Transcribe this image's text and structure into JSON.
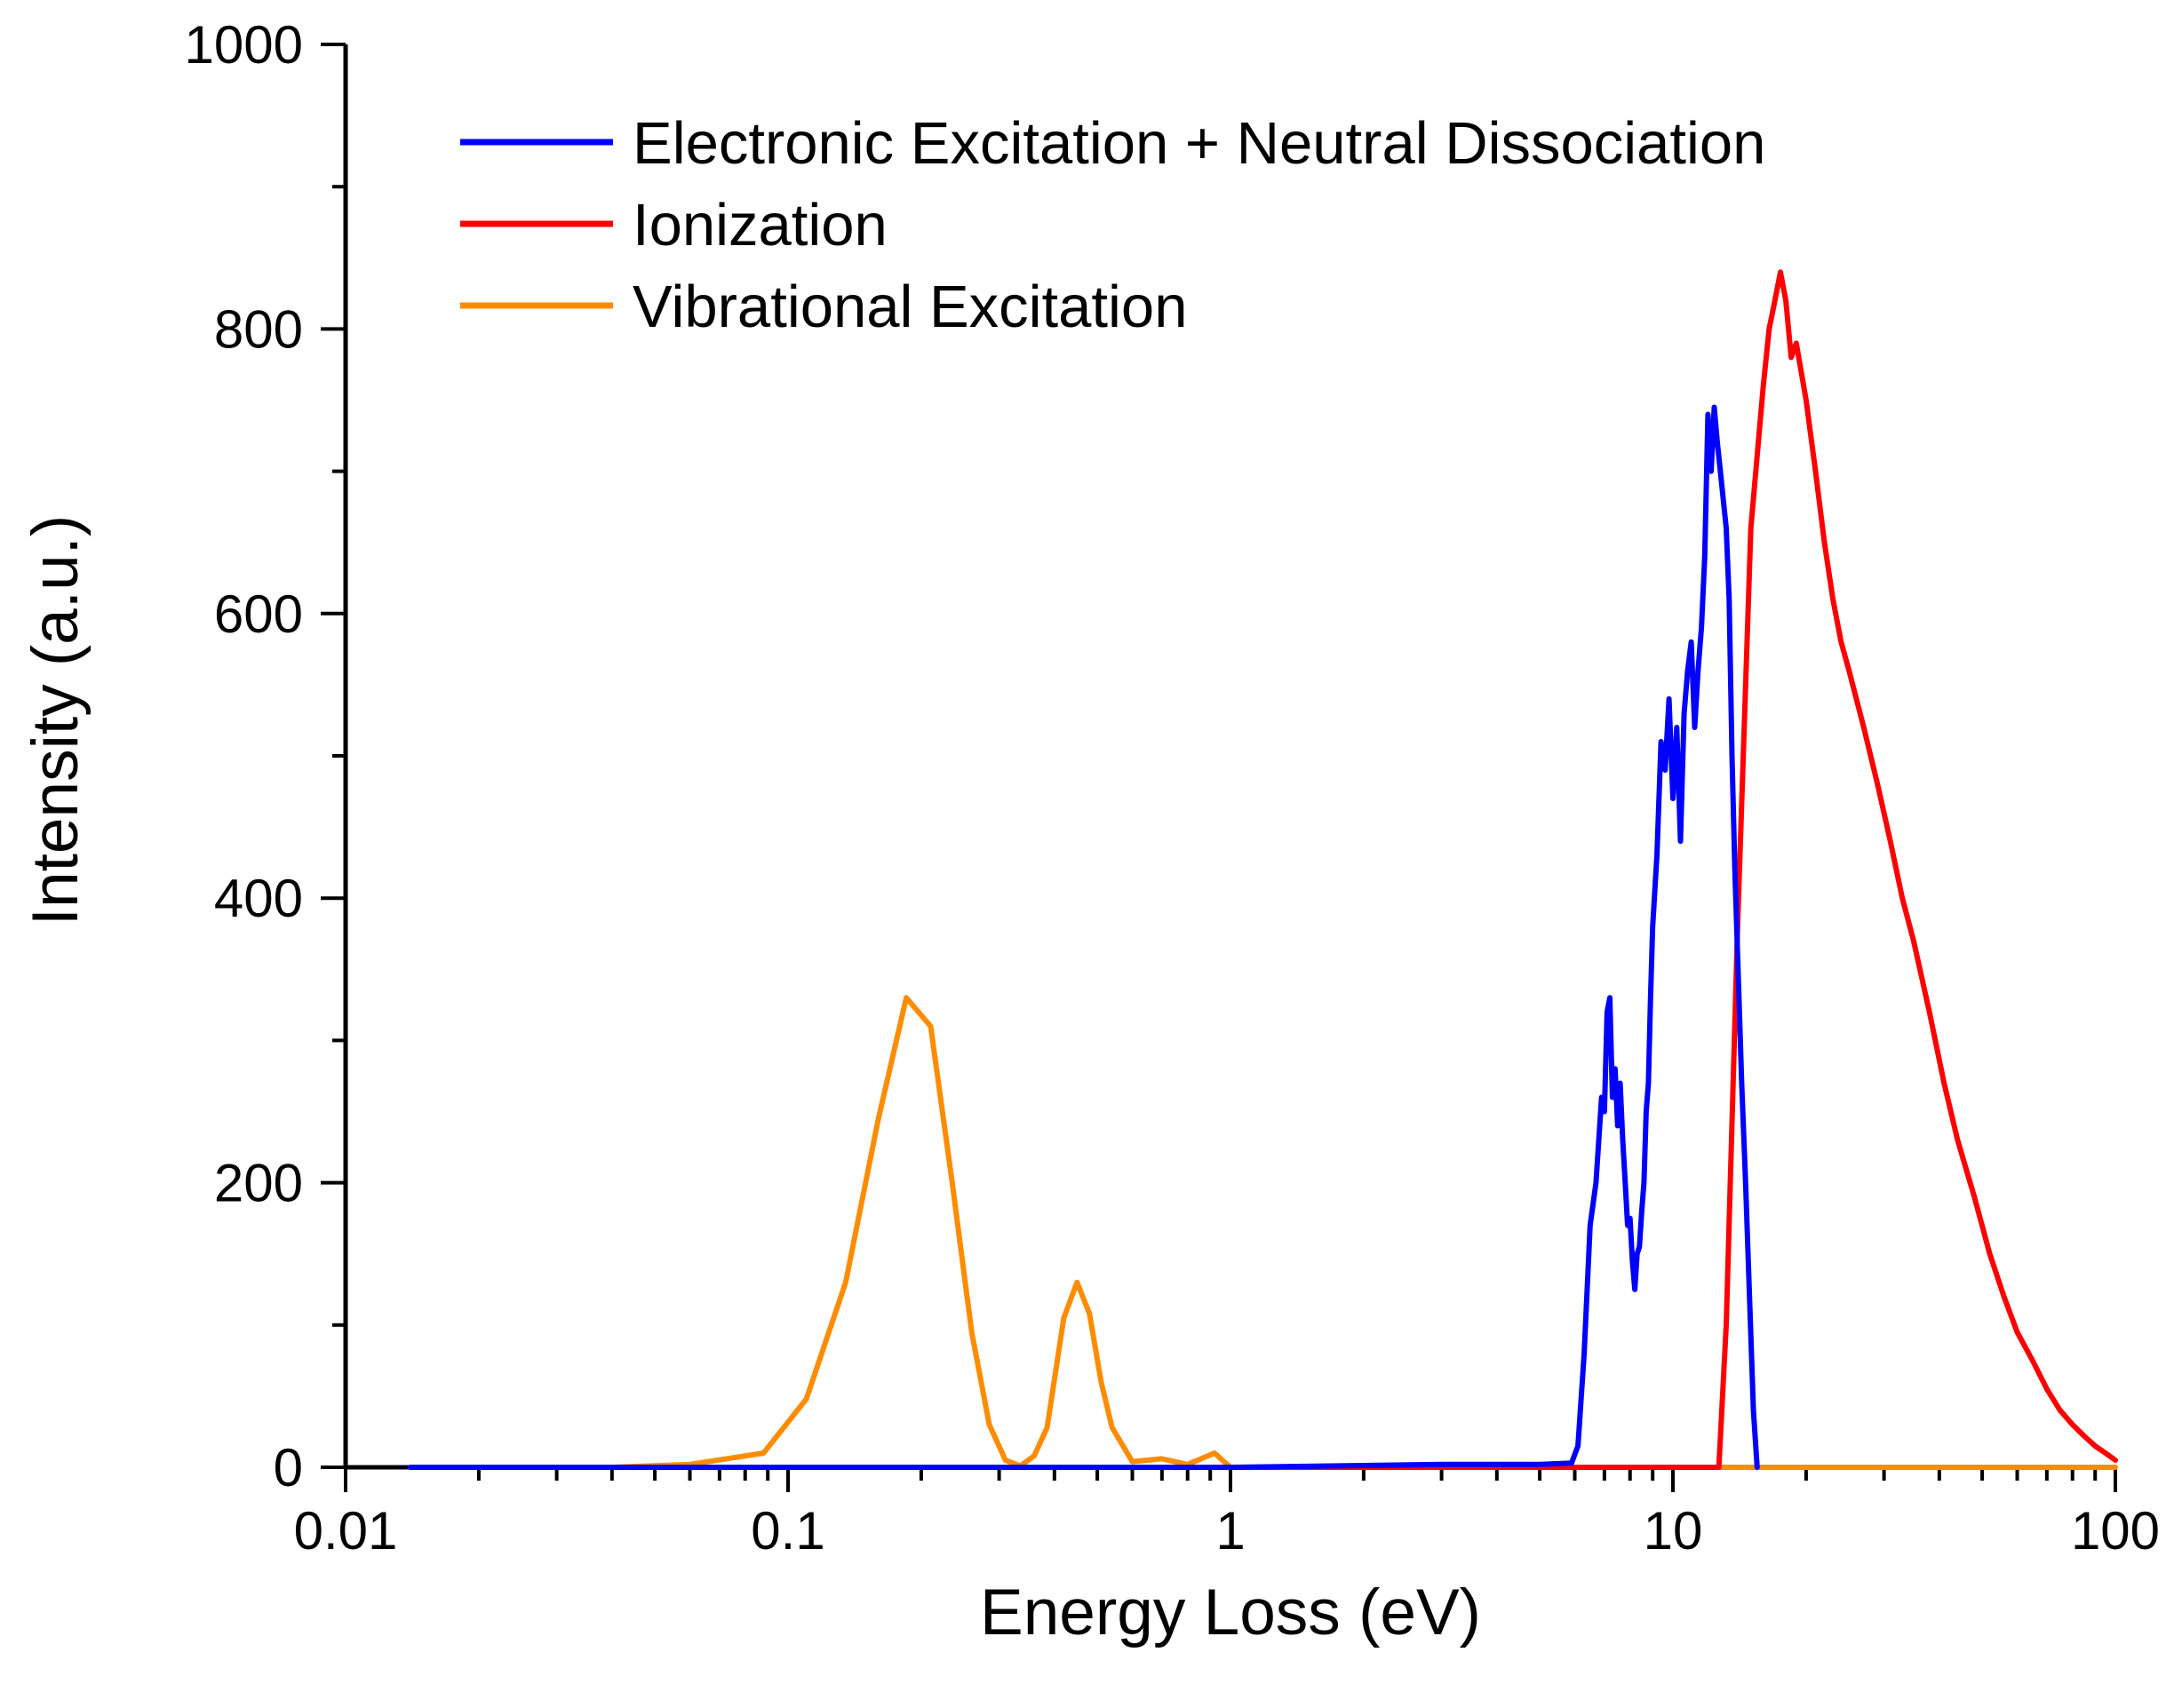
{
  "chart_data": {
    "type": "line",
    "title": "",
    "xlabel": "Energy Loss (eV)",
    "ylabel": "Intensity (a.u.)",
    "xscale": "log",
    "xlim": [
      0.01,
      100
    ],
    "ylim": [
      0,
      1000
    ],
    "xticks": [
      {
        "value": 0.01,
        "label": "0.01"
      },
      {
        "value": 0.1,
        "label": "0.1"
      },
      {
        "value": 1,
        "label": "1"
      },
      {
        "value": 10,
        "label": "10"
      },
      {
        "value": 100,
        "label": "100"
      }
    ],
    "yticks": [
      {
        "value": 0,
        "label": "0"
      },
      {
        "value": 200,
        "label": "200"
      },
      {
        "value": 400,
        "label": "400"
      },
      {
        "value": 600,
        "label": "600"
      },
      {
        "value": 800,
        "label": "800"
      },
      {
        "value": 1000,
        "label": "1000"
      }
    ],
    "grid": false,
    "legend_position": "top-left",
    "series": [
      {
        "name": "Electronic Excitation + Neutral Dissociation",
        "color": "#0000ff",
        "x": [
          0.014,
          1.0,
          3.0,
          5.0,
          5.9,
          6.1,
          6.3,
          6.5,
          6.7,
          6.9,
          7.0,
          7.1,
          7.2,
          7.3,
          7.4,
          7.5,
          7.6,
          7.7,
          7.8,
          7.9,
          8.0,
          8.1,
          8.2,
          8.3,
          8.4,
          8.5,
          8.6,
          8.7,
          8.8,
          8.9,
          9.0,
          9.2,
          9.4,
          9.6,
          9.8,
          10.0,
          10.2,
          10.4,
          10.6,
          10.8,
          11.0,
          11.2,
          11.4,
          11.6,
          11.8,
          12.0,
          12.2,
          12.4,
          12.6,
          12.8,
          13.0,
          13.2,
          13.4,
          13.6,
          13.8,
          14.0,
          14.3,
          14.6,
          14.9,
          15.2,
          15.5
        ],
        "y": [
          0,
          0,
          2,
          2,
          3,
          15,
          80,
          170,
          200,
          260,
          250,
          320,
          330,
          260,
          280,
          240,
          270,
          230,
          200,
          170,
          175,
          145,
          125,
          150,
          155,
          180,
          200,
          250,
          270,
          330,
          380,
          430,
          510,
          490,
          540,
          470,
          520,
          440,
          530,
          560,
          580,
          520,
          560,
          590,
          640,
          740,
          700,
          745,
          720,
          700,
          680,
          660,
          610,
          500,
          420,
          360,
          270,
          200,
          120,
          40,
          0
        ]
      },
      {
        "name": "Ionization",
        "color": "#ff0000",
        "x": [
          0.014,
          12.7,
          13.2,
          14.0,
          15.0,
          16.0,
          16.5,
          17.0,
          17.5,
          18.0,
          18.5,
          19.0,
          19.5,
          20.0,
          21.0,
          22.0,
          23.0,
          24.0,
          25.0,
          27.0,
          29.0,
          31.0,
          33.0,
          35.0,
          38.0,
          41.0,
          44.0,
          48.0,
          52.0,
          56.0,
          60.0,
          65.0,
          70.0,
          75.0,
          80.0,
          85.0,
          90.0,
          95.0,
          100.0
        ],
        "y": [
          0,
          0,
          100,
          380,
          660,
          760,
          800,
          820,
          840,
          820,
          780,
          790,
          770,
          750,
          700,
          650,
          610,
          580,
          560,
          520,
          480,
          440,
          400,
          370,
          320,
          270,
          230,
          190,
          150,
          120,
          95,
          75,
          55,
          40,
          30,
          22,
          15,
          10,
          5
        ]
      },
      {
        "name": "Vibrational Excitation",
        "color": "#ff8c00",
        "x": [
          0.014,
          0.04,
          0.06,
          0.088,
          0.11,
          0.135,
          0.16,
          0.185,
          0.21,
          0.235,
          0.26,
          0.285,
          0.31,
          0.335,
          0.36,
          0.385,
          0.42,
          0.45,
          0.48,
          0.51,
          0.54,
          0.6,
          0.7,
          0.8,
          0.92,
          1.0,
          2.0,
          100.0
        ],
        "y": [
          0,
          0,
          2,
          10,
          48,
          130,
          245,
          330,
          310,
          200,
          95,
          30,
          5,
          1,
          8,
          28,
          105,
          130,
          108,
          60,
          28,
          4,
          6,
          2,
          10,
          0,
          0,
          0
        ]
      }
    ]
  }
}
